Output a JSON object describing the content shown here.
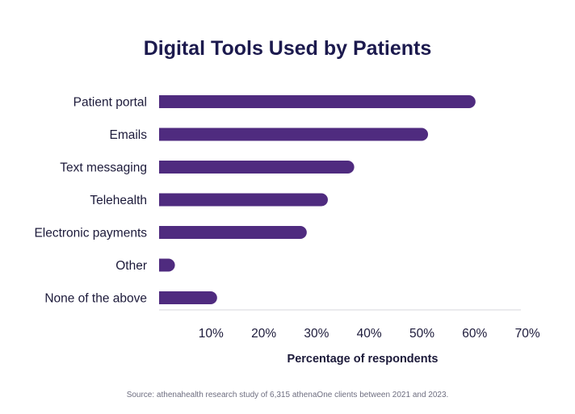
{
  "chart_data": {
    "type": "bar",
    "orientation": "horizontal",
    "title": "Digital Tools Used by Patients",
    "categories": [
      "Patient portal",
      "Emails",
      "Text messaging",
      "Telehealth",
      "Electronic payments",
      "Other",
      "None of the above"
    ],
    "values": [
      60,
      51,
      37,
      32,
      28,
      3,
      11
    ],
    "unit": "%",
    "xlabel": "Percentage of respondents",
    "ylabel": "",
    "xlim": [
      0,
      70
    ],
    "xticks": [
      10,
      20,
      30,
      40,
      50,
      60,
      70
    ],
    "tick_labels": [
      "10%",
      "20%",
      "30%",
      "40%",
      "50%",
      "60%",
      "70%"
    ],
    "grid": false,
    "legend": "none",
    "bar_color": "#4f2b7f",
    "axis_color": "#d7d7de",
    "source": "Source: athenahealth research study of 6,315 athenaOne clients between 2021 and 2023."
  }
}
